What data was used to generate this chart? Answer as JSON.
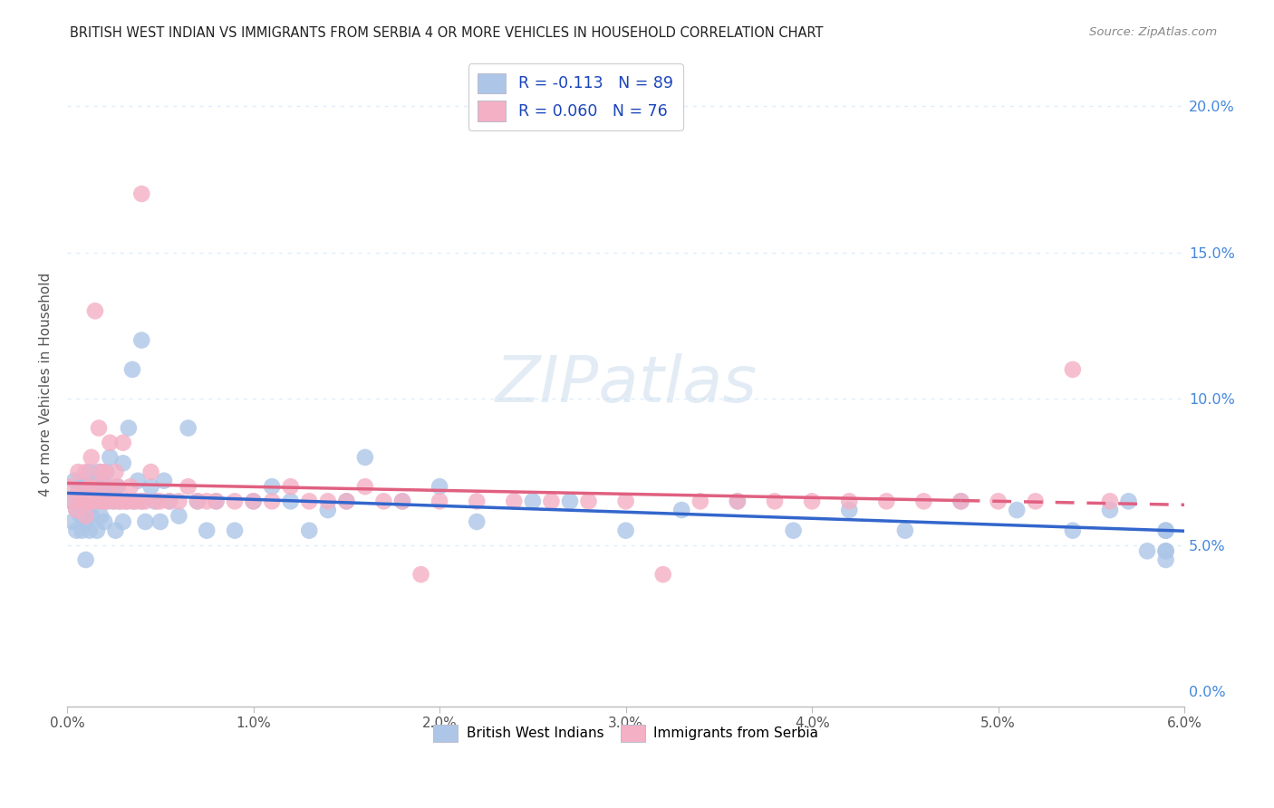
{
  "title": "BRITISH WEST INDIAN VS IMMIGRANTS FROM SERBIA 4 OR MORE VEHICLES IN HOUSEHOLD CORRELATION CHART",
  "source": "Source: ZipAtlas.com",
  "ylabel": "4 or more Vehicles in Household",
  "xmin": 0.0,
  "xmax": 0.06,
  "ymin": -0.005,
  "ymax": 0.215,
  "xtick_vals": [
    0.0,
    0.01,
    0.02,
    0.03,
    0.04,
    0.05,
    0.06
  ],
  "xtick_labels": [
    "0.0%",
    "1.0%",
    "2.0%",
    "3.0%",
    "4.0%",
    "5.0%",
    "6.0%"
  ],
  "ytick_vals": [
    0.0,
    0.05,
    0.1,
    0.15,
    0.2
  ],
  "ytick_labels": [
    "0.0%",
    "5.0%",
    "10.0%",
    "15.0%",
    "20.0%"
  ],
  "series1_label": "British West Indians",
  "series1_R": -0.113,
  "series1_N": 89,
  "series1_color": "#adc6e8",
  "series1_line_color": "#3366cc",
  "series2_label": "Immigrants from Serbia",
  "series2_R": 0.06,
  "series2_N": 76,
  "series2_color": "#f4b0c5",
  "series2_line_color": "#e06080",
  "legend_R_color": "#1a44bb",
  "background_color": "#ffffff",
  "grid_color": "#ddeeff",
  "title_color": "#222222",
  "watermark": "ZIPatlas",
  "series1_x": [
    0.0002,
    0.0003,
    0.0004,
    0.0005,
    0.0005,
    0.0006,
    0.0007,
    0.0008,
    0.0008,
    0.0009,
    0.001,
    0.001,
    0.001,
    0.001,
    0.0011,
    0.0012,
    0.0012,
    0.0013,
    0.0013,
    0.0014,
    0.0015,
    0.0015,
    0.0016,
    0.0016,
    0.0017,
    0.0018,
    0.0018,
    0.0019,
    0.002,
    0.002,
    0.002,
    0.0021,
    0.0022,
    0.0023,
    0.0024,
    0.0025,
    0.0026,
    0.0027,
    0.0028,
    0.003,
    0.003,
    0.0032,
    0.0033,
    0.0035,
    0.0036,
    0.0038,
    0.004,
    0.004,
    0.0042,
    0.0045,
    0.0047,
    0.005,
    0.0052,
    0.0055,
    0.006,
    0.0065,
    0.007,
    0.0075,
    0.008,
    0.009,
    0.01,
    0.011,
    0.012,
    0.013,
    0.014,
    0.015,
    0.016,
    0.018,
    0.02,
    0.022,
    0.025,
    0.027,
    0.03,
    0.033,
    0.036,
    0.039,
    0.042,
    0.045,
    0.048,
    0.051,
    0.054,
    0.056,
    0.057,
    0.058,
    0.059,
    0.059,
    0.059,
    0.059,
    0.059
  ],
  "series1_y": [
    0.065,
    0.058,
    0.072,
    0.055,
    0.062,
    0.068,
    0.06,
    0.055,
    0.07,
    0.065,
    0.058,
    0.065,
    0.07,
    0.045,
    0.062,
    0.075,
    0.055,
    0.065,
    0.06,
    0.07,
    0.065,
    0.072,
    0.055,
    0.068,
    0.075,
    0.065,
    0.06,
    0.072,
    0.058,
    0.065,
    0.07,
    0.075,
    0.065,
    0.08,
    0.068,
    0.065,
    0.055,
    0.07,
    0.065,
    0.078,
    0.058,
    0.065,
    0.09,
    0.11,
    0.065,
    0.072,
    0.065,
    0.12,
    0.058,
    0.07,
    0.065,
    0.058,
    0.072,
    0.065,
    0.06,
    0.09,
    0.065,
    0.055,
    0.065,
    0.055,
    0.065,
    0.07,
    0.065,
    0.055,
    0.062,
    0.065,
    0.08,
    0.065,
    0.07,
    0.058,
    0.065,
    0.065,
    0.055,
    0.062,
    0.065,
    0.055,
    0.062,
    0.055,
    0.065,
    0.062,
    0.055,
    0.062,
    0.065,
    0.048,
    0.055,
    0.048,
    0.055,
    0.048,
    0.045
  ],
  "series2_x": [
    0.0002,
    0.0003,
    0.0005,
    0.0006,
    0.0007,
    0.0008,
    0.0009,
    0.001,
    0.001,
    0.0011,
    0.0012,
    0.0013,
    0.0014,
    0.0015,
    0.0015,
    0.0016,
    0.0017,
    0.0018,
    0.0019,
    0.002,
    0.002,
    0.0021,
    0.0022,
    0.0023,
    0.0025,
    0.0026,
    0.0027,
    0.0028,
    0.003,
    0.003,
    0.0032,
    0.0034,
    0.0035,
    0.0037,
    0.004,
    0.004,
    0.0042,
    0.0045,
    0.0048,
    0.005,
    0.0055,
    0.006,
    0.0065,
    0.007,
    0.0075,
    0.008,
    0.009,
    0.01,
    0.011,
    0.012,
    0.013,
    0.014,
    0.015,
    0.016,
    0.017,
    0.018,
    0.019,
    0.02,
    0.022,
    0.024,
    0.026,
    0.028,
    0.03,
    0.032,
    0.034,
    0.036,
    0.038,
    0.04,
    0.042,
    0.044,
    0.046,
    0.048,
    0.05,
    0.052,
    0.054,
    0.056
  ],
  "series2_y": [
    0.07,
    0.065,
    0.062,
    0.075,
    0.065,
    0.068,
    0.065,
    0.06,
    0.075,
    0.065,
    0.07,
    0.08,
    0.065,
    0.13,
    0.065,
    0.07,
    0.09,
    0.075,
    0.065,
    0.065,
    0.075,
    0.065,
    0.07,
    0.085,
    0.065,
    0.075,
    0.07,
    0.065,
    0.065,
    0.085,
    0.065,
    0.07,
    0.065,
    0.065,
    0.17,
    0.065,
    0.065,
    0.075,
    0.065,
    0.065,
    0.065,
    0.065,
    0.07,
    0.065,
    0.065,
    0.065,
    0.065,
    0.065,
    0.065,
    0.07,
    0.065,
    0.065,
    0.065,
    0.07,
    0.065,
    0.065,
    0.04,
    0.065,
    0.065,
    0.065,
    0.065,
    0.065,
    0.065,
    0.04,
    0.065,
    0.065,
    0.065,
    0.065,
    0.065,
    0.065,
    0.065,
    0.065,
    0.065,
    0.065,
    0.11,
    0.065
  ]
}
